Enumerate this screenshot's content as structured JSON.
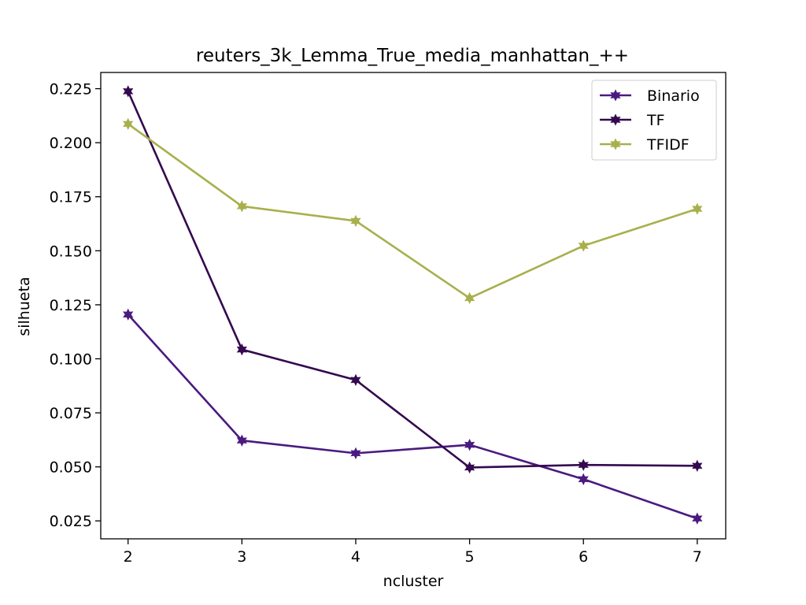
{
  "chart_data": {
    "type": "line",
    "title": "reuters_3k_Lemma_True_media_manhattan_++",
    "xlabel": "ncluster",
    "ylabel": "silhueta",
    "x": [
      2,
      3,
      4,
      5,
      6,
      7
    ],
    "xlim": [
      1.76,
      7.25
    ],
    "ylim": [
      0.0167,
      0.2325
    ],
    "xticks": [
      2,
      3,
      4,
      5,
      6,
      7
    ],
    "yticks": [
      0.025,
      0.05,
      0.075,
      0.1,
      0.125,
      0.15,
      0.175,
      0.2,
      0.225
    ],
    "ytick_labels": [
      "0.025",
      "0.050",
      "0.075",
      "0.100",
      "0.125",
      "0.150",
      "0.175",
      "0.200",
      "0.225"
    ],
    "grid": false,
    "legend_position": "top-right",
    "marker": "star",
    "series": [
      {
        "name": "Binario",
        "color": "#4a1a80",
        "values": [
          0.1205,
          0.0622,
          0.0563,
          0.0602,
          0.0443,
          0.0261
        ]
      },
      {
        "name": "TF",
        "color": "#34094f",
        "values": [
          0.2238,
          0.1043,
          0.0902,
          0.0497,
          0.0509,
          0.0505
        ]
      },
      {
        "name": "TFIDF",
        "color": "#a8b04c",
        "values": [
          0.2087,
          0.1706,
          0.1638,
          0.1281,
          0.1523,
          0.1694
        ]
      }
    ]
  }
}
